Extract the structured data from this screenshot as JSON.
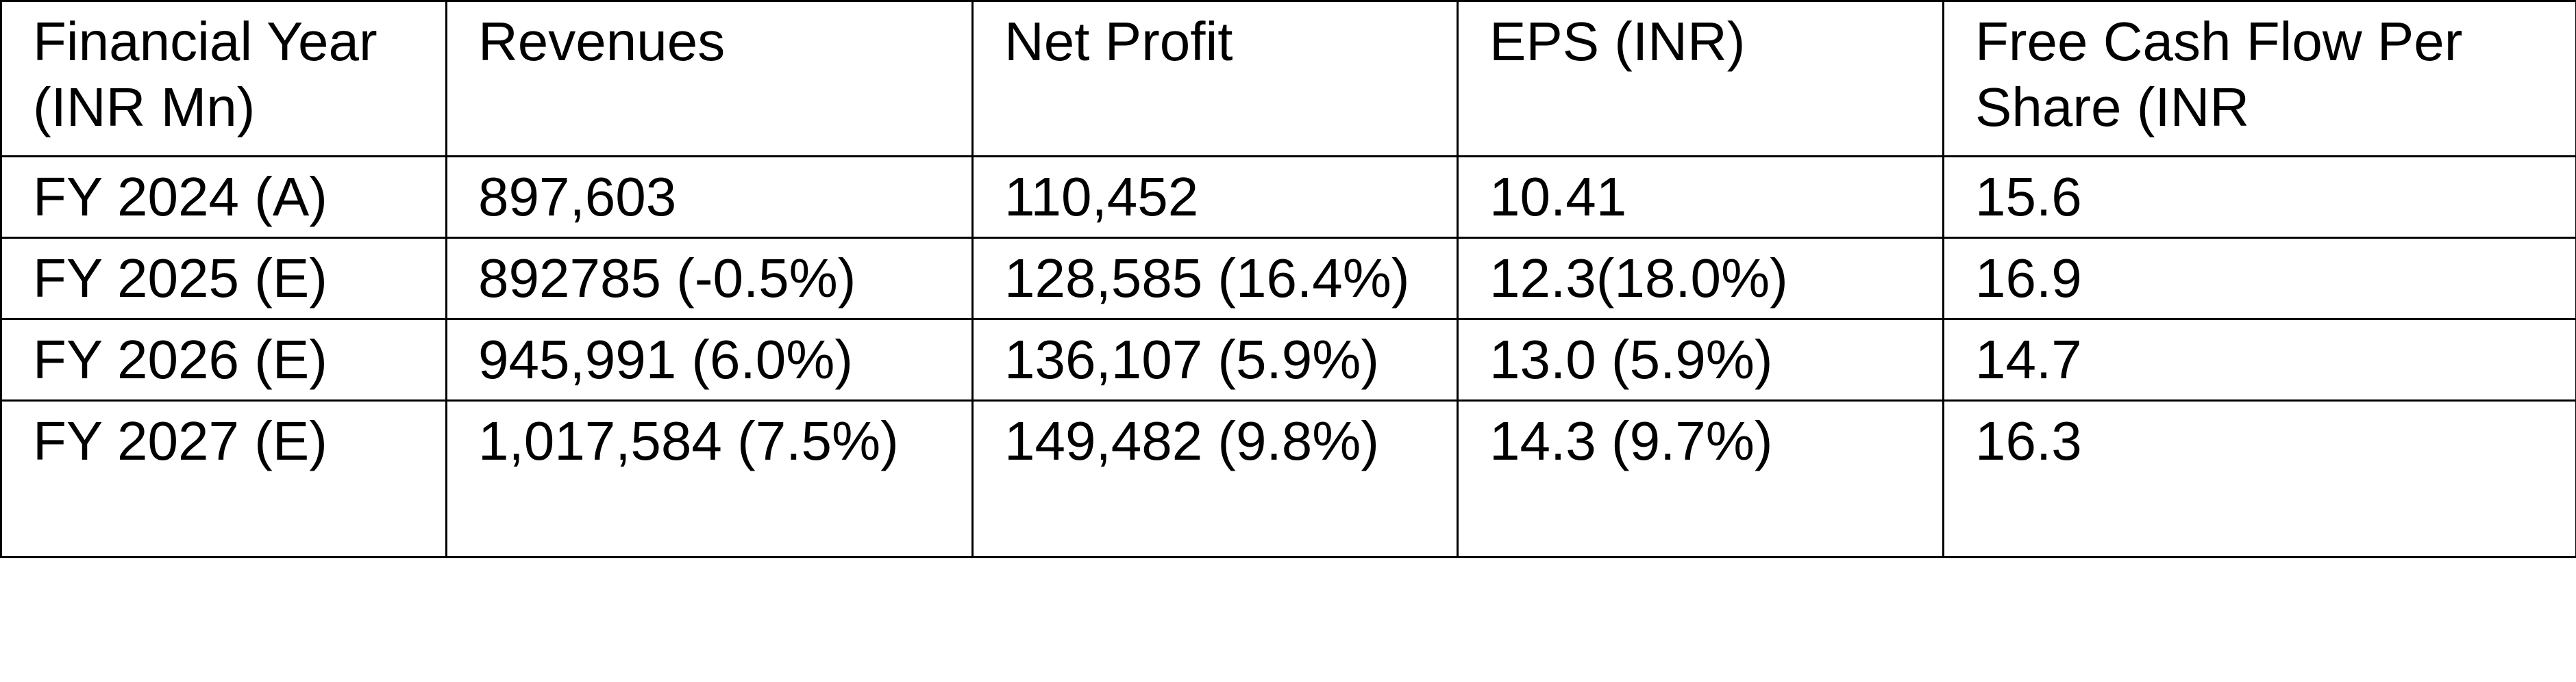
{
  "table": {
    "headers": [
      "Financial Year (INR Mn)",
      "Revenues",
      "Net Profit",
      "EPS (INR)",
      "Free Cash Flow Per Share (INR"
    ],
    "rows": [
      [
        "FY 2024 (A)",
        "897,603",
        "110,452",
        "10.41",
        "15.6"
      ],
      [
        "FY 2025 (E)",
        "892785 (-0.5%)",
        "128,585 (16.4%)",
        "12.3(18.0%)",
        "16.9"
      ],
      [
        "FY 2026 (E)",
        "945,991 (6.0%)",
        "136,107 (5.9%)",
        "13.0 (5.9%)",
        "14.7"
      ],
      [
        "FY 2027 (E)",
        "1,017,584 (7.5%)",
        "149,482 (9.8%)",
        "14.3 (9.7%)",
        "16.3"
      ]
    ]
  },
  "colors": {
    "text": "#000000",
    "border": "#000000",
    "background": "#ffffff"
  }
}
